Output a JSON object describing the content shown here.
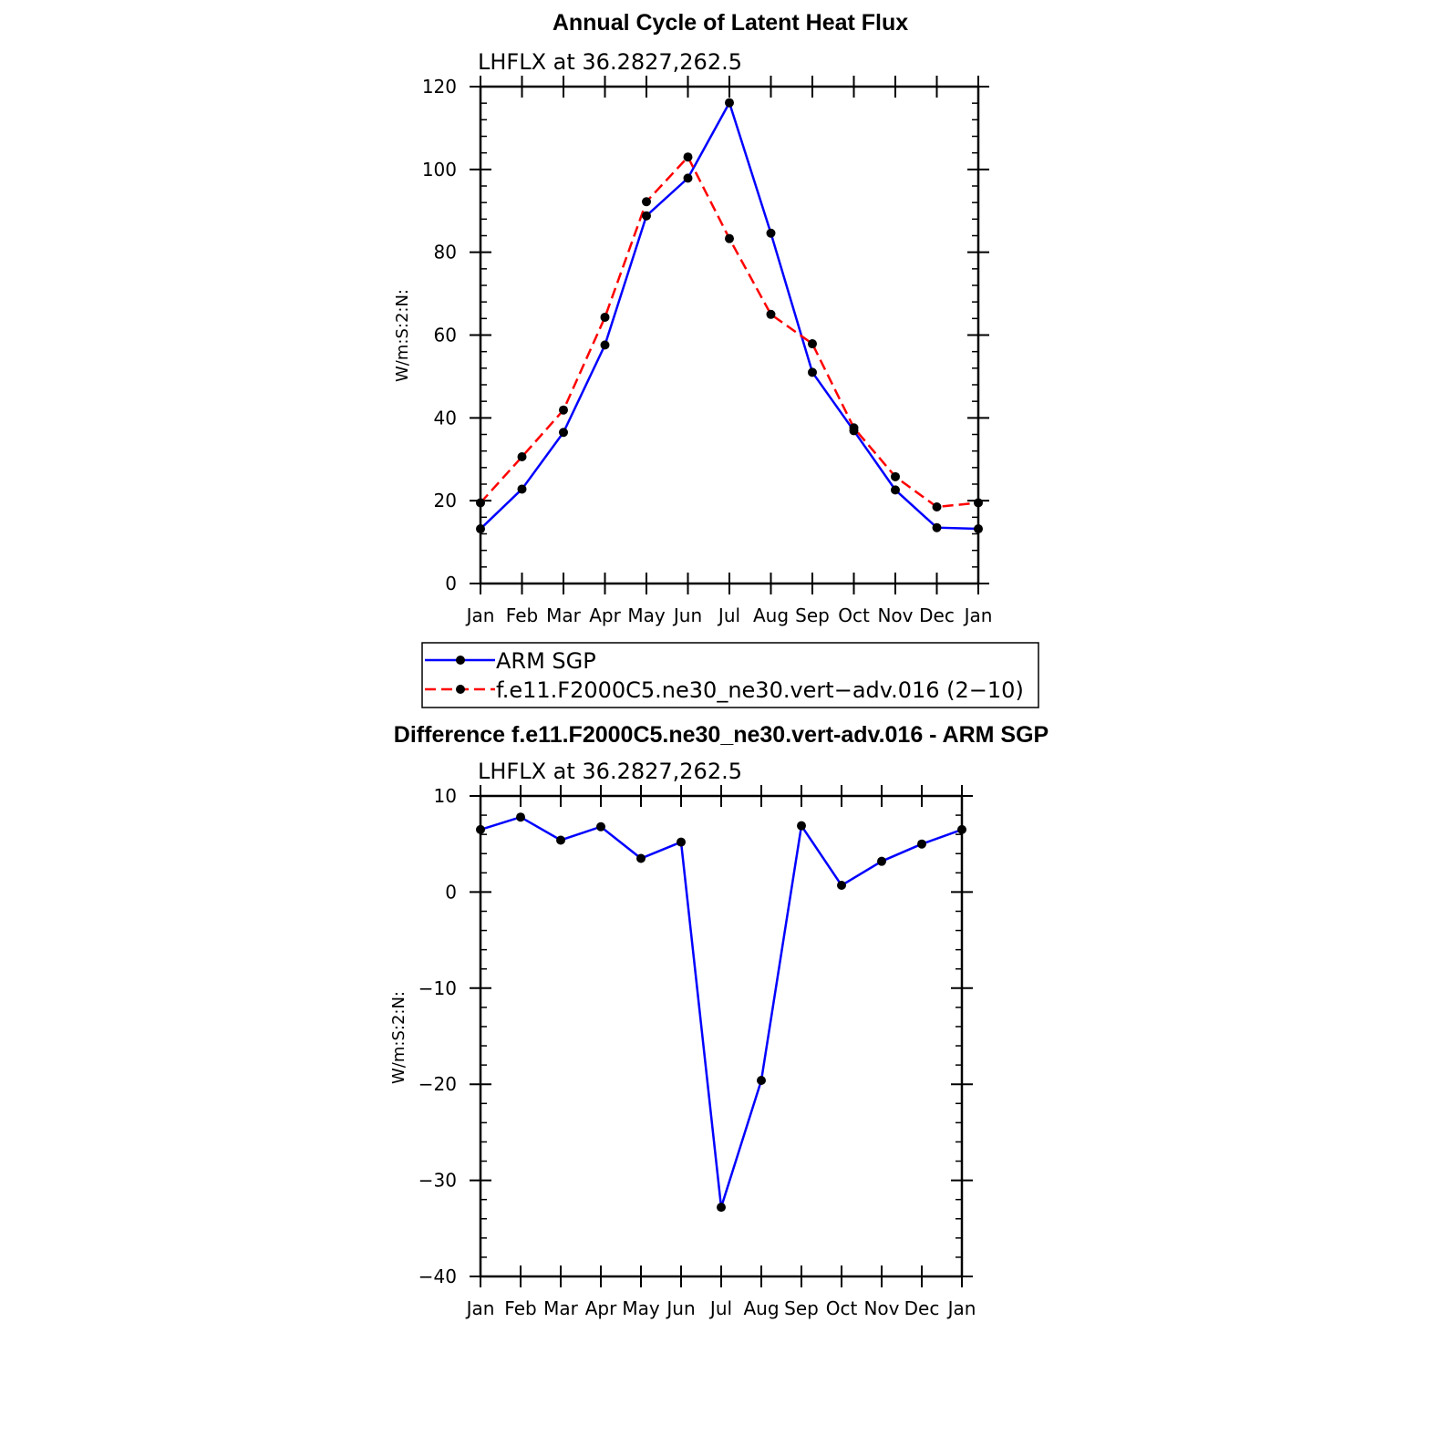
{
  "chart_data": [
    {
      "type": "line",
      "title": "Annual Cycle of Latent Heat Flux",
      "subtitle": "LHFLX at 36.2827,262.5",
      "xlabel": "",
      "ylabel": "W/m:S:2:N:",
      "categories": [
        "Jan",
        "Feb",
        "Mar",
        "Apr",
        "May",
        "Jun",
        "Jul",
        "Aug",
        "Sep",
        "Oct",
        "Nov",
        "Dec",
        "Jan"
      ],
      "ylim": [
        0,
        120
      ],
      "yticks": [
        0,
        20,
        40,
        60,
        80,
        100,
        120
      ],
      "grid": false,
      "legend_position": "below",
      "series": [
        {
          "name": "ARM SGP",
          "color": "#0000ff",
          "dash": "solid",
          "values": [
            13.2,
            22.8,
            36.5,
            57.6,
            88.8,
            97.9,
            116.1,
            84.6,
            51.0,
            36.9,
            22.6,
            13.5,
            13.2
          ]
        },
        {
          "name": "f.e11.F2000C5.ne30_ne30.vert−adv.016 (2−10)",
          "color": "#ff0000",
          "dash": "dashed",
          "values": [
            19.5,
            30.6,
            41.9,
            64.3,
            92.2,
            103.0,
            83.3,
            65.0,
            57.9,
            37.6,
            25.8,
            18.5,
            19.5
          ]
        }
      ]
    },
    {
      "type": "line",
      "title": "Difference f.e11.F2000C5.ne30_ne30.vert-adv.016 - ARM SGP",
      "subtitle": "LHFLX at 36.2827,262.5",
      "xlabel": "",
      "ylabel": "W/m:S:2:N:",
      "categories": [
        "Jan",
        "Feb",
        "Mar",
        "Apr",
        "May",
        "Jun",
        "Jul",
        "Aug",
        "Sep",
        "Oct",
        "Nov",
        "Dec",
        "Jan"
      ],
      "ylim": [
        -40,
        10
      ],
      "yticks": [
        -40,
        -30,
        -20,
        -10,
        0,
        10
      ],
      "ytick_labels": [
        "−40",
        "−30",
        "−20",
        "−10",
        "0",
        "10"
      ],
      "grid": false,
      "series": [
        {
          "color": "#0000ff",
          "dash": "solid",
          "values": [
            6.5,
            7.8,
            5.4,
            6.8,
            3.5,
            5.2,
            -32.8,
            -19.6,
            6.9,
            0.7,
            3.2,
            5.0,
            6.5
          ]
        }
      ]
    }
  ]
}
